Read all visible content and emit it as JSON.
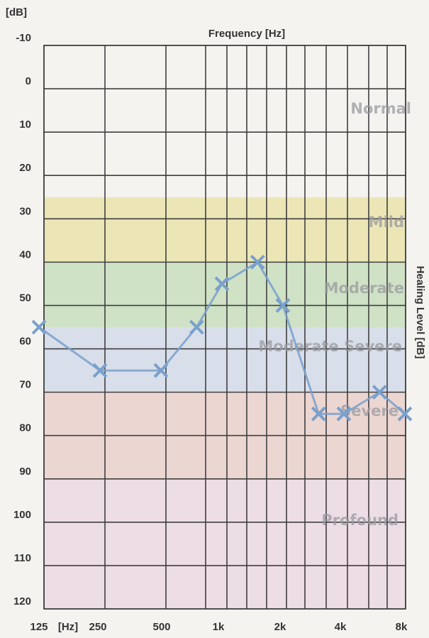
{
  "chart_data": {
    "type": "line",
    "y_unit_label": "[dB]",
    "x_title": "Frequency [Hz]",
    "y_title": "Healing Level [dB]",
    "ylim": [
      -10,
      120
    ],
    "y_reversed": true,
    "y_ticks": [
      "-10",
      "0",
      "10",
      "20",
      "30",
      "40",
      "50",
      "60",
      "70",
      "80",
      "90",
      "100",
      "110",
      "120"
    ],
    "x_tick_labels": [
      {
        "freq": 125,
        "label": "125"
      },
      {
        "freq": 180,
        "label": "[Hz]"
      },
      {
        "freq": 250,
        "label": "250"
      },
      {
        "freq": 500,
        "label": "500"
      },
      {
        "freq": 1000,
        "label": "1k"
      },
      {
        "freq": 2000,
        "label": "2k"
      },
      {
        "freq": 4000,
        "label": "4k"
      },
      {
        "freq": 8000,
        "label": "8k"
      }
    ],
    "bands": [
      {
        "label": "Normal",
        "from": -10,
        "to": 25,
        "color": "#f4f3f0"
      },
      {
        "label": "Mild",
        "from": 25,
        "to": 40,
        "color": "#ece6b6"
      },
      {
        "label": "Moderate",
        "from": 40,
        "to": 55,
        "color": "#cfe2c6"
      },
      {
        "label": "Moderate Severe",
        "from": 55,
        "to": 70,
        "color": "#d8dfea"
      },
      {
        "label": "Severe",
        "from": 70,
        "to": 90,
        "color": "#ecd6d2"
      },
      {
        "label": "Profound",
        "from": 90,
        "to": 120,
        "color": "#eddde4"
      }
    ],
    "series": [
      {
        "marker": "x",
        "color": "#7aa0cc",
        "points": [
          {
            "x": 125,
            "y": 55
          },
          {
            "x": 250,
            "y": 65
          },
          {
            "x": 500,
            "y": 65
          },
          {
            "x": 750,
            "y": 55
          },
          {
            "x": 1000,
            "y": 45
          },
          {
            "x": 1500,
            "y": 40
          },
          {
            "x": 2000,
            "y": 50
          },
          {
            "x": 3000,
            "y": 75
          },
          {
            "x": 4000,
            "y": 75
          },
          {
            "x": 6000,
            "y": 70
          },
          {
            "x": 8000,
            "y": 75
          }
        ]
      }
    ]
  }
}
